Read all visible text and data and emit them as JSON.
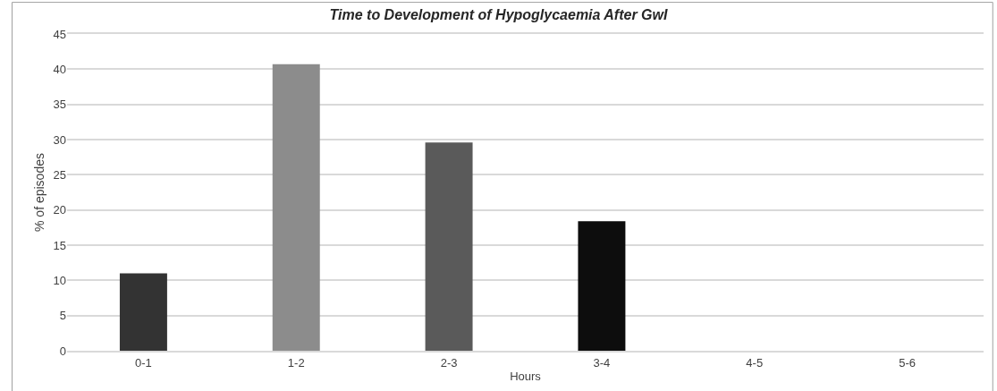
{
  "chart_data": {
    "type": "bar",
    "title": "Time to Development of Hypoglycaemia After GwI",
    "xlabel": "Hours",
    "ylabel": "% of episodes",
    "categories": [
      "0-1",
      "1-2",
      "2-3",
      "3-4",
      "4-5",
      "5-6"
    ],
    "values": [
      11,
      40.7,
      29.6,
      18.4,
      0,
      0
    ],
    "colors": [
      "#333333",
      "#8c8c8c",
      "#5a5a5a",
      "#0d0d0d",
      "#333333",
      "#333333"
    ],
    "ylim": [
      0,
      45
    ],
    "yticks": [
      0,
      5,
      10,
      15,
      20,
      25,
      30,
      35,
      40,
      45
    ],
    "grid": "y"
  }
}
